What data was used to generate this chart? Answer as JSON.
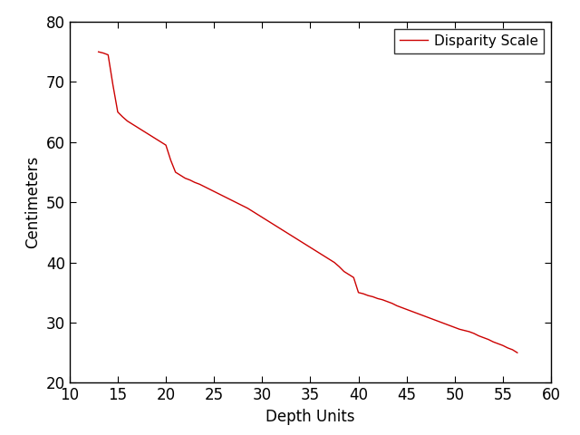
{
  "title": "",
  "xlabel": "Depth Units",
  "ylabel": "Centimeters",
  "legend_label": "Disparity Scale",
  "line_color": "#cc0000",
  "xlim": [
    10,
    60
  ],
  "ylim": [
    20,
    80
  ],
  "xticks": [
    10,
    15,
    20,
    25,
    30,
    35,
    40,
    45,
    50,
    55,
    60
  ],
  "yticks": [
    20,
    30,
    40,
    50,
    60,
    70,
    80
  ],
  "background_color": "#ffffff",
  "x": [
    13.0,
    13.5,
    14.0,
    14.5,
    15.0,
    15.5,
    16.0,
    16.5,
    17.0,
    17.5,
    18.0,
    18.5,
    19.0,
    19.5,
    20.0,
    20.5,
    21.0,
    21.5,
    22.0,
    22.5,
    23.0,
    23.5,
    24.0,
    24.5,
    25.0,
    25.5,
    26.0,
    26.5,
    27.0,
    27.5,
    28.0,
    28.5,
    29.0,
    29.5,
    30.0,
    30.5,
    31.0,
    31.5,
    32.0,
    32.5,
    33.0,
    33.5,
    34.0,
    34.5,
    35.0,
    35.5,
    36.0,
    36.5,
    37.0,
    37.5,
    38.0,
    38.5,
    39.0,
    39.5,
    40.0,
    40.5,
    41.0,
    41.5,
    42.0,
    42.5,
    43.0,
    43.5,
    44.0,
    44.5,
    45.0,
    45.5,
    46.0,
    46.5,
    47.0,
    47.5,
    48.0,
    48.5,
    49.0,
    49.5,
    50.0,
    50.5,
    51.0,
    51.5,
    52.0,
    52.5,
    53.0,
    53.5,
    54.0,
    54.5,
    55.0,
    55.5,
    56.0,
    56.5
  ],
  "y": [
    75.0,
    74.8,
    74.5,
    69.5,
    65.0,
    64.2,
    63.5,
    63.0,
    62.5,
    62.0,
    61.5,
    61.0,
    60.5,
    60.0,
    59.5,
    57.0,
    55.0,
    54.5,
    54.0,
    53.7,
    53.3,
    53.0,
    52.6,
    52.2,
    51.8,
    51.4,
    51.0,
    50.6,
    50.2,
    49.8,
    49.4,
    49.0,
    48.5,
    48.0,
    47.5,
    47.0,
    46.5,
    46.0,
    45.5,
    45.0,
    44.5,
    44.0,
    43.5,
    43.0,
    42.5,
    42.0,
    41.5,
    41.0,
    40.5,
    40.0,
    39.3,
    38.5,
    38.0,
    37.5,
    35.0,
    34.8,
    34.5,
    34.3,
    34.0,
    33.8,
    33.5,
    33.2,
    32.8,
    32.5,
    32.2,
    31.9,
    31.6,
    31.3,
    31.0,
    30.7,
    30.4,
    30.1,
    29.8,
    29.5,
    29.2,
    28.9,
    28.7,
    28.5,
    28.2,
    27.8,
    27.5,
    27.2,
    26.8,
    26.5,
    26.2,
    25.8,
    25.5,
    25.0
  ]
}
